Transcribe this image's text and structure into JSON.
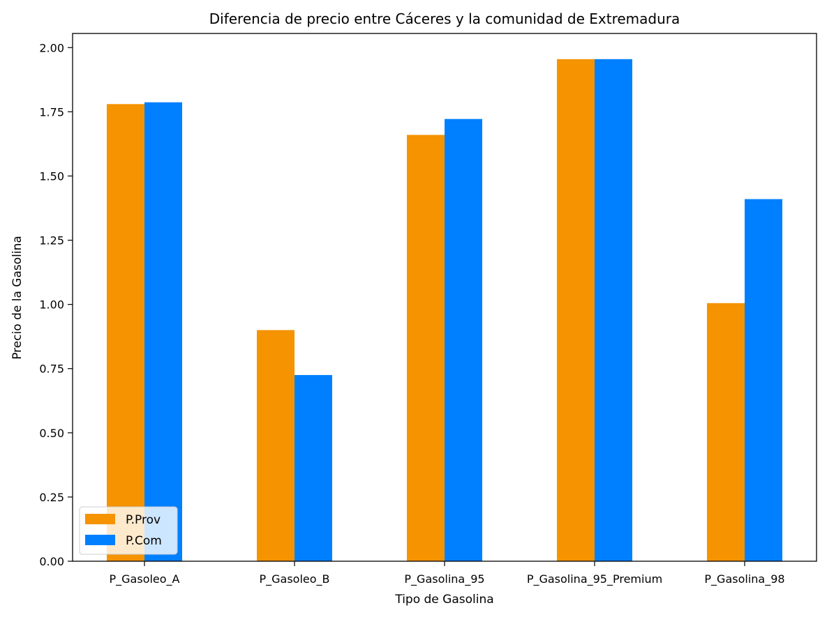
{
  "chart_data": {
    "type": "bar",
    "title": "Diferencia de precio entre Cáceres y la comunidad de Extremadura",
    "xlabel": "Tipo de Gasolina",
    "ylabel": "Precio de la Gasolina",
    "categories": [
      "P_Gasoleo_A",
      "P_Gasoleo_B",
      "P_Gasolina_95",
      "P_Gasolina_95_Premium",
      "P_Gasolina_98"
    ],
    "series": [
      {
        "name": "P.Prov",
        "color": "#f59300",
        "values": [
          1.78,
          0.9,
          1.66,
          1.955,
          1.005
        ]
      },
      {
        "name": "P.Com",
        "color": "#0080ff",
        "values": [
          1.787,
          0.725,
          1.722,
          1.955,
          1.41
        ]
      }
    ],
    "ylim": [
      0,
      2.055
    ],
    "yticks": [
      "0.00",
      "0.25",
      "0.50",
      "0.75",
      "1.00",
      "1.25",
      "1.50",
      "1.75",
      "2.00"
    ],
    "grid": false,
    "legend_position": "lower-left"
  }
}
